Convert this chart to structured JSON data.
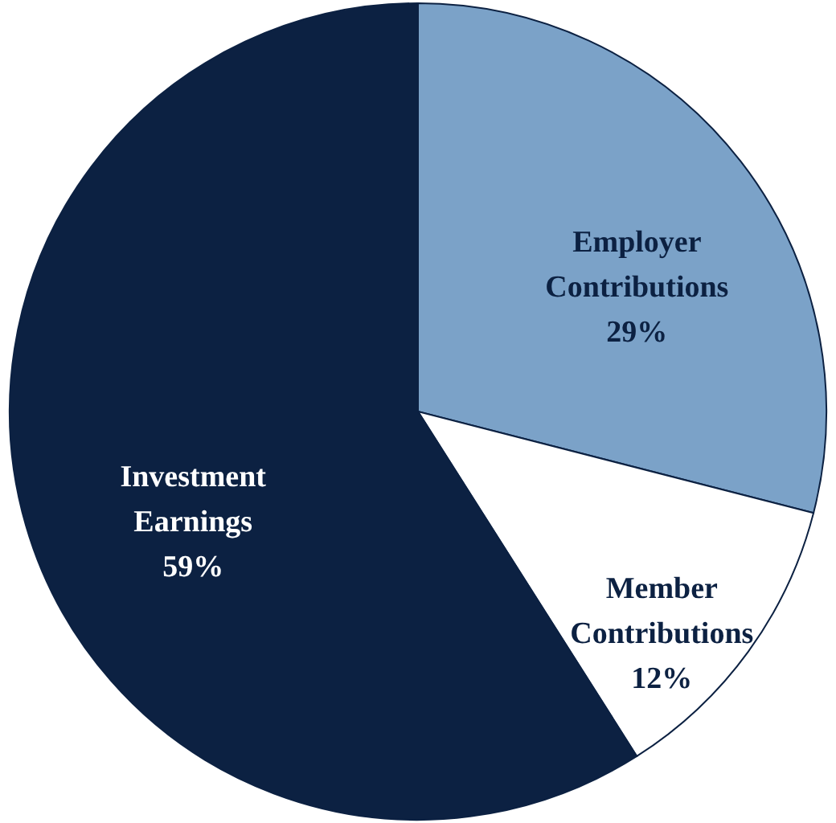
{
  "chart_data": {
    "type": "pie",
    "categories": [
      "Employer Contributions",
      "Member Contributions",
      "Investment Earnings"
    ],
    "values": [
      29,
      12,
      59
    ],
    "value_labels": [
      "29%",
      "12%",
      "59%"
    ],
    "colors": [
      "#7ba2c8",
      "#ffffff",
      "#0c2142"
    ],
    "legend": false
  }
}
